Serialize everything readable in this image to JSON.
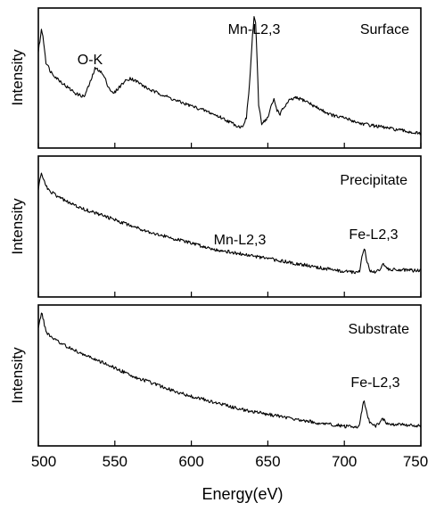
{
  "chart_data": {
    "type": "line",
    "xlabel": "Energy(eV)",
    "xlim": [
      500,
      750
    ],
    "x_ticks": [
      500,
      550,
      600,
      650,
      700,
      750
    ],
    "grid": false,
    "panels": [
      {
        "title": "Surface",
        "ylabel": "Intensity",
        "ylim": [
          0,
          1
        ],
        "annotations": [
          {
            "text": "O-K",
            "x": 532
          },
          {
            "text": "Mn-L2,3",
            "x": 643
          }
        ],
        "series": [
          {
            "x": [
              500,
              502,
              503,
              505,
              508,
              512,
              518,
              525,
              530,
              534,
              537,
              540,
              543,
              546,
              549,
              552,
              556,
              560,
              565,
              570,
              575,
              580,
              590,
              600,
              610,
              620,
              625,
              630,
              633,
              636,
              638,
              640,
              641,
              642,
              643,
              644,
              646,
              648,
              650,
              652,
              654,
              656,
              658,
              660,
              664,
              668,
              672,
              676,
              680,
              685,
              690,
              695,
              700,
              705,
              710,
              715,
              720,
              725,
              730,
              735,
              740,
              745,
              750
            ],
            "y": [
              0.7,
              0.86,
              0.82,
              0.62,
              0.55,
              0.5,
              0.44,
              0.38,
              0.36,
              0.47,
              0.57,
              0.56,
              0.51,
              0.43,
              0.38,
              0.42,
              0.47,
              0.5,
              0.47,
              0.43,
              0.4,
              0.38,
              0.33,
              0.29,
              0.25,
              0.2,
              0.17,
              0.14,
              0.13,
              0.2,
              0.45,
              0.82,
              0.96,
              0.92,
              0.62,
              0.3,
              0.16,
              0.18,
              0.2,
              0.28,
              0.34,
              0.26,
              0.23,
              0.27,
              0.33,
              0.35,
              0.34,
              0.32,
              0.29,
              0.26,
              0.23,
              0.21,
              0.2,
              0.18,
              0.16,
              0.15,
              0.14,
              0.13,
              0.12,
              0.11,
              0.1,
              0.09,
              0.08
            ]
          }
        ]
      },
      {
        "title": "Precipitate",
        "ylabel": "Intensity",
        "ylim": [
          0,
          1
        ],
        "annotations": [
          {
            "text": "Mn-L2,3",
            "x": 640
          },
          {
            "text": "Fe-L2,3",
            "x": 711
          }
        ],
        "series": [
          {
            "x": [
              500,
              502,
              503,
              505,
              508,
              512,
              518,
              525,
              535,
              545,
              555,
              565,
              575,
              585,
              595,
              605,
              615,
              625,
              635,
              645,
              655,
              665,
              675,
              685,
              695,
              700,
              705,
              708,
              710,
              712,
              713,
              715,
              717,
              720,
              723,
              725,
              727,
              730,
              735,
              740,
              745,
              750
            ],
            "y": [
              0.78,
              0.91,
              0.87,
              0.8,
              0.76,
              0.73,
              0.69,
              0.65,
              0.61,
              0.57,
              0.53,
              0.49,
              0.45,
              0.42,
              0.39,
              0.36,
              0.33,
              0.31,
              0.29,
              0.27,
              0.25,
              0.23,
              0.21,
              0.19,
              0.17,
              0.165,
              0.16,
              0.16,
              0.17,
              0.3,
              0.34,
              0.23,
              0.17,
              0.16,
              0.18,
              0.22,
              0.19,
              0.18,
              0.18,
              0.175,
              0.17,
              0.17
            ]
          }
        ]
      },
      {
        "title": "Substrate",
        "ylabel": "Intensity",
        "ylim": [
          0,
          1
        ],
        "annotations": [
          {
            "text": "Fe-L2,3",
            "x": 712
          }
        ],
        "series": [
          {
            "x": [
              500,
              502,
              503,
              505,
              508,
              512,
              518,
              525,
              535,
              545,
              555,
              565,
              575,
              585,
              595,
              605,
              615,
              625,
              635,
              645,
              655,
              665,
              675,
              685,
              695,
              700,
              705,
              708,
              710,
              712,
              713,
              715,
              717,
              720,
              723,
              725,
              727,
              730,
              735,
              740,
              745,
              750
            ],
            "y": [
              0.85,
              0.97,
              0.93,
              0.83,
              0.79,
              0.76,
              0.72,
              0.68,
              0.63,
              0.58,
              0.53,
              0.48,
              0.44,
              0.4,
              0.36,
              0.33,
              0.3,
              0.27,
              0.24,
              0.22,
              0.2,
              0.18,
              0.16,
              0.14,
              0.13,
              0.12,
              0.115,
              0.11,
              0.13,
              0.28,
              0.31,
              0.2,
              0.14,
              0.12,
              0.14,
              0.18,
              0.15,
              0.13,
              0.135,
              0.13,
              0.13,
              0.12
            ]
          }
        ]
      }
    ]
  }
}
